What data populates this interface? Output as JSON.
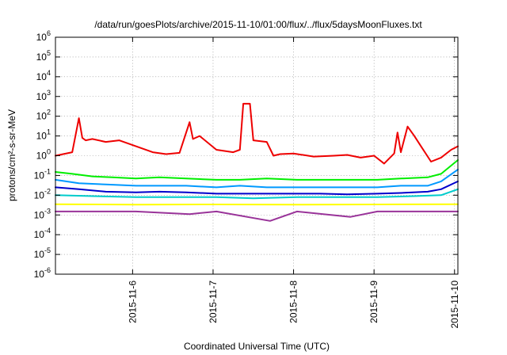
{
  "chart_data": {
    "type": "line",
    "title": "/data/run/goesPlots/archive/2015-11-10/01:00/flux/../flux/5daysMoonFluxes.txt",
    "xlabel": "Coordinated Universal Time (UTC)",
    "ylabel": "protons/cm²-s-sr-MeV",
    "y_scale": "log",
    "ylim": [
      1e-06,
      1000000.0
    ],
    "xlim": [
      "2015-11-05T01:00",
      "2015-11-10T01:00"
    ],
    "grid": true,
    "x_ticks": [
      "2015-11-6",
      "2015-11-7",
      "2015-11-8",
      "2015-11-9",
      "2015-11-10"
    ],
    "y_tick_exponents": [
      -6,
      -5,
      -4,
      -3,
      -2,
      -1,
      0,
      1,
      2,
      3,
      4,
      5,
      6
    ],
    "series": [
      {
        "color": "#ee0000",
        "x": [
          "2015-11-05T01:00",
          "2015-11-05T06:00",
          "2015-11-05T08:00",
          "2015-11-05T09:00",
          "2015-11-05T10:00",
          "2015-11-05T12:00",
          "2015-11-05T16:00",
          "2015-11-05T20:00",
          "2015-11-06T01:00",
          "2015-11-06T06:00",
          "2015-11-06T10:00",
          "2015-11-06T14:00",
          "2015-11-06T17:00",
          "2015-11-06T18:00",
          "2015-11-06T20:00",
          "2015-11-07T01:00",
          "2015-11-07T06:00",
          "2015-11-07T08:00",
          "2015-11-07T09:00",
          "2015-11-07T11:00",
          "2015-11-07T12:00",
          "2015-11-07T16:00",
          "2015-11-07T18:00",
          "2015-11-07T20:00",
          "2015-11-08T00:00",
          "2015-11-08T06:00",
          "2015-11-08T12:00",
          "2015-11-08T16:00",
          "2015-11-08T20:00",
          "2015-11-09T00:00",
          "2015-11-09T03:00",
          "2015-11-09T06:00",
          "2015-11-09T07:00",
          "2015-11-09T08:00",
          "2015-11-09T10:00",
          "2015-11-09T12:00",
          "2015-11-09T14:00",
          "2015-11-09T17:00",
          "2015-11-09T20:00",
          "2015-11-09T23:00",
          "2015-11-10T01:00"
        ],
        "y": [
          1.0,
          1.5,
          80,
          8,
          6,
          7,
          5,
          6,
          3,
          1.5,
          1.2,
          1.4,
          50,
          7,
          10,
          2,
          1.5,
          2,
          430,
          430,
          6,
          5,
          1,
          1.2,
          1.3,
          0.9,
          1.0,
          1.1,
          0.8,
          1.0,
          0.4,
          1.3,
          15,
          1.5,
          30,
          10,
          3,
          0.5,
          0.8,
          2,
          3
        ]
      },
      {
        "color": "#00ee00",
        "x": [
          "2015-11-05T01:00",
          "2015-11-05T06:00",
          "2015-11-05T12:00",
          "2015-11-05T18:00",
          "2015-11-06T01:00",
          "2015-11-06T08:00",
          "2015-11-06T16:00",
          "2015-11-07T01:00",
          "2015-11-07T08:00",
          "2015-11-07T16:00",
          "2015-11-08T01:00",
          "2015-11-08T08:00",
          "2015-11-08T16:00",
          "2015-11-09T01:00",
          "2015-11-09T08:00",
          "2015-11-09T16:00",
          "2015-11-09T20:00",
          "2015-11-10T01:00"
        ],
        "y": [
          0.15,
          0.12,
          0.09,
          0.08,
          0.07,
          0.08,
          0.07,
          0.06,
          0.06,
          0.07,
          0.06,
          0.06,
          0.06,
          0.06,
          0.07,
          0.08,
          0.12,
          0.6
        ]
      },
      {
        "color": "#0099ff",
        "x": [
          "2015-11-05T01:00",
          "2015-11-05T08:00",
          "2015-11-05T16:00",
          "2015-11-06T01:00",
          "2015-11-06T08:00",
          "2015-11-06T16:00",
          "2015-11-07T01:00",
          "2015-11-07T08:00",
          "2015-11-07T16:00",
          "2015-11-08T01:00",
          "2015-11-08T08:00",
          "2015-11-08T16:00",
          "2015-11-09T01:00",
          "2015-11-09T08:00",
          "2015-11-09T16:00",
          "2015-11-09T20:00",
          "2015-11-10T01:00"
        ],
        "y": [
          0.06,
          0.04,
          0.035,
          0.03,
          0.03,
          0.03,
          0.025,
          0.03,
          0.025,
          0.025,
          0.025,
          0.025,
          0.025,
          0.03,
          0.03,
          0.05,
          0.2
        ]
      },
      {
        "color": "#0000cc",
        "x": [
          "2015-11-05T01:00",
          "2015-11-05T08:00",
          "2015-11-05T16:00",
          "2015-11-06T01:00",
          "2015-11-06T08:00",
          "2015-11-06T16:00",
          "2015-11-07T01:00",
          "2015-11-07T08:00",
          "2015-11-07T16:00",
          "2015-11-08T01:00",
          "2015-11-08T08:00",
          "2015-11-08T16:00",
          "2015-11-09T01:00",
          "2015-11-09T08:00",
          "2015-11-09T16:00",
          "2015-11-09T20:00",
          "2015-11-10T01:00"
        ],
        "y": [
          0.025,
          0.02,
          0.015,
          0.014,
          0.015,
          0.014,
          0.012,
          0.012,
          0.012,
          0.012,
          0.012,
          0.011,
          0.012,
          0.013,
          0.015,
          0.02,
          0.05
        ]
      },
      {
        "color": "#00cccc",
        "x": [
          "2015-11-05T01:00",
          "2015-11-05T12:00",
          "2015-11-06T01:00",
          "2015-11-06T12:00",
          "2015-11-07T01:00",
          "2015-11-07T12:00",
          "2015-11-08T01:00",
          "2015-11-08T12:00",
          "2015-11-09T01:00",
          "2015-11-09T12:00",
          "2015-11-09T20:00",
          "2015-11-10T01:00"
        ],
        "y": [
          0.01,
          0.009,
          0.008,
          0.008,
          0.008,
          0.007,
          0.008,
          0.008,
          0.008,
          0.009,
          0.01,
          0.02
        ]
      },
      {
        "color": "#ffff00",
        "x": [
          "2015-11-05T01:00",
          "2015-11-06T01:00",
          "2015-11-07T01:00",
          "2015-11-08T01:00",
          "2015-11-09T01:00",
          "2015-11-10T01:00"
        ],
        "y": [
          0.0035,
          0.0033,
          0.0034,
          0.0033,
          0.0034,
          0.0035
        ]
      },
      {
        "color": "#993399",
        "x": [
          "2015-11-05T01:00",
          "2015-11-06T01:00",
          "2015-11-06T17:00",
          "2015-11-07T01:00",
          "2015-11-07T17:00",
          "2015-11-08T01:00",
          "2015-11-08T17:00",
          "2015-11-09T01:00",
          "2015-11-10T01:00"
        ],
        "y": [
          0.0015,
          0.0015,
          0.0011,
          0.0015,
          0.0005,
          0.0015,
          0.0008,
          0.0015,
          0.0015
        ]
      }
    ]
  }
}
